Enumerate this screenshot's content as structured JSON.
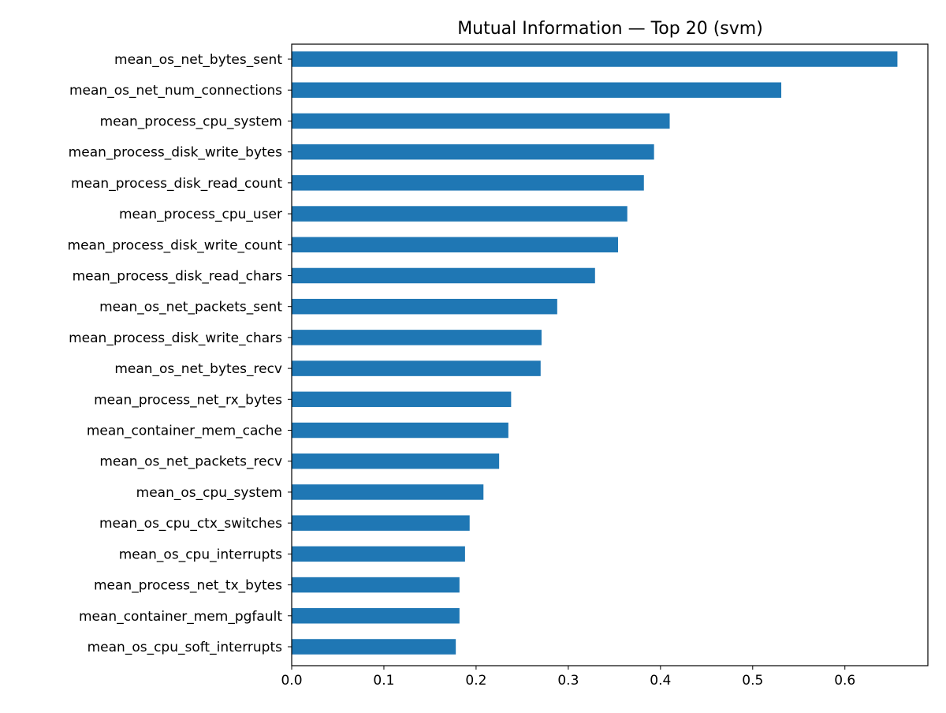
{
  "chart_data": {
    "type": "bar",
    "orientation": "horizontal",
    "title": "Mutual Information — Top 20 (svm)",
    "xlabel": "",
    "ylabel": "",
    "xlim": [
      0,
      0.69
    ],
    "xticks": [
      0.0,
      0.1,
      0.2,
      0.3,
      0.4,
      0.5,
      0.6
    ],
    "xtick_labels": [
      "0.0",
      "0.1",
      "0.2",
      "0.3",
      "0.4",
      "0.5",
      "0.6"
    ],
    "grid": false,
    "legend": "none",
    "bar_color": "#1f77b4",
    "categories": [
      "mean_os_net_bytes_sent",
      "mean_os_net_num_connections",
      "mean_process_cpu_system",
      "mean_process_disk_write_bytes",
      "mean_process_disk_read_count",
      "mean_process_cpu_user",
      "mean_process_disk_write_count",
      "mean_process_disk_read_chars",
      "mean_os_net_packets_sent",
      "mean_process_disk_write_chars",
      "mean_os_net_bytes_recv",
      "mean_process_net_rx_bytes",
      "mean_container_mem_cache",
      "mean_os_net_packets_recv",
      "mean_os_cpu_system",
      "mean_os_cpu_ctx_switches",
      "mean_os_cpu_interrupts",
      "mean_process_net_tx_bytes",
      "mean_container_mem_pgfault",
      "mean_os_cpu_soft_interrupts"
    ],
    "values": [
      0.657,
      0.531,
      0.41,
      0.393,
      0.382,
      0.364,
      0.354,
      0.329,
      0.288,
      0.271,
      0.27,
      0.238,
      0.235,
      0.225,
      0.208,
      0.193,
      0.188,
      0.182,
      0.182,
      0.178
    ]
  }
}
